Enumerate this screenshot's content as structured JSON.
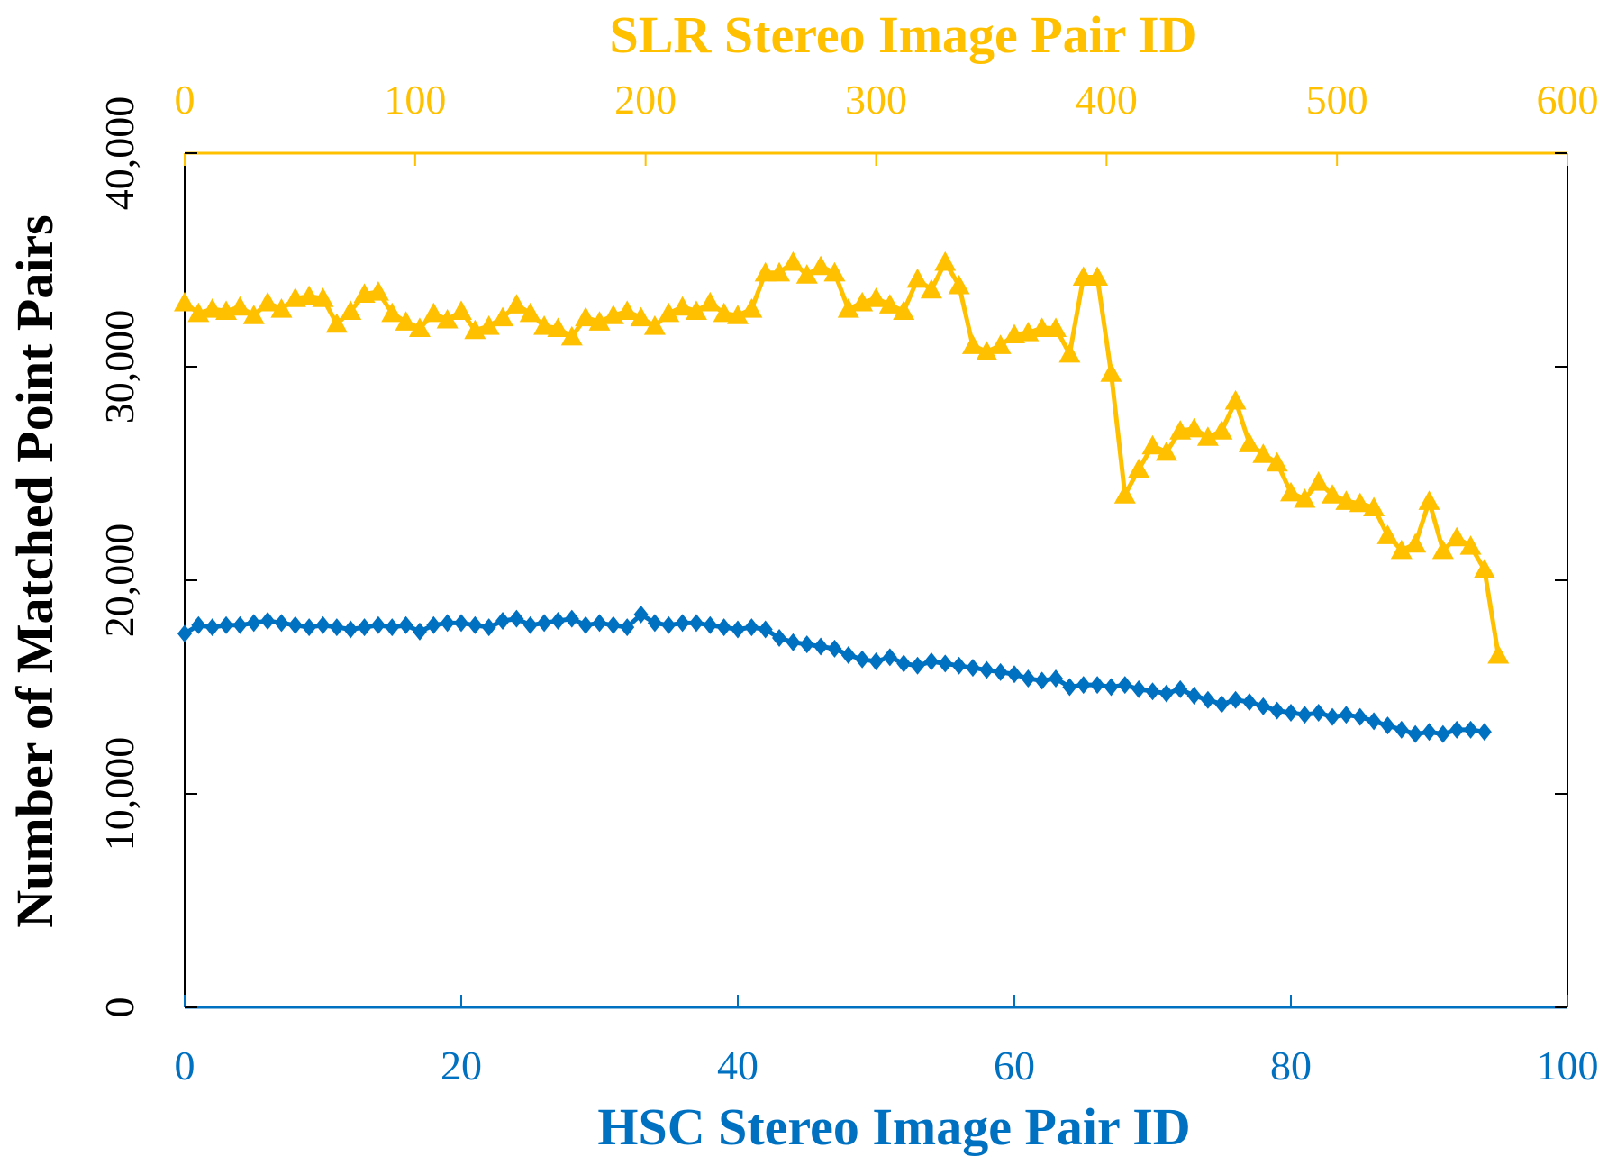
{
  "chart_data": {
    "type": "line",
    "top_axis": {
      "label": "SLR Stereo Image Pair ID",
      "range": [
        0,
        600
      ],
      "ticks": [
        "0",
        "100",
        "200",
        "300",
        "400",
        "500",
        "600"
      ],
      "color": "#FFC000"
    },
    "bottom_axis": {
      "label": "HSC Stereo Image Pair ID",
      "range": [
        0,
        100
      ],
      "ticks": [
        "0",
        "20",
        "40",
        "60",
        "80",
        "100"
      ],
      "color": "#0070C0"
    },
    "y_axis": {
      "label": "Number of Matched Point Pairs",
      "range": [
        0,
        40000
      ],
      "ticks": [
        "0",
        "10,000",
        "20,000",
        "30,000",
        "40,000"
      ],
      "color": "#000000"
    },
    "grid": false,
    "legend": "none",
    "series": [
      {
        "axis": "bottom",
        "marker": "diamond",
        "color": "#0070C0",
        "x": [
          0,
          1,
          2,
          3,
          4,
          5,
          6,
          7,
          8,
          9,
          10,
          11,
          12,
          13,
          14,
          15,
          16,
          17,
          18,
          19,
          20,
          21,
          22,
          23,
          24,
          25,
          26,
          27,
          28,
          29,
          30,
          31,
          32,
          33,
          34,
          35,
          36,
          37,
          38,
          39,
          40,
          41,
          42,
          43,
          44,
          45,
          46,
          47,
          48,
          49,
          50,
          51,
          52,
          53,
          54,
          55,
          56,
          57,
          58,
          59,
          60,
          61,
          62,
          63,
          64,
          65,
          66,
          67,
          68,
          69,
          70,
          71,
          72,
          73,
          74,
          75,
          76,
          77,
          78,
          79,
          80,
          81,
          82,
          83,
          84,
          85,
          86,
          87,
          88,
          89,
          90,
          91,
          92,
          93,
          94
        ],
        "y": [
          17500,
          17900,
          17800,
          17900,
          17900,
          18000,
          18100,
          18000,
          17900,
          17800,
          17900,
          17800,
          17700,
          17800,
          17900,
          17800,
          17900,
          17600,
          17900,
          18000,
          18000,
          17900,
          17800,
          18100,
          18200,
          17900,
          18000,
          18100,
          18200,
          17900,
          18000,
          17900,
          17800,
          18400,
          18000,
          17900,
          18000,
          18000,
          17900,
          17800,
          17700,
          17800,
          17700,
          17300,
          17100,
          17000,
          16900,
          16800,
          16500,
          16300,
          16200,
          16400,
          16100,
          16000,
          16200,
          16100,
          16000,
          15900,
          15800,
          15700,
          15600,
          15400,
          15300,
          15400,
          15000,
          15100,
          15100,
          15000,
          15100,
          14900,
          14800,
          14700,
          14900,
          14600,
          14400,
          14200,
          14400,
          14300,
          14100,
          13900,
          13800,
          13700,
          13800,
          13600,
          13700,
          13600,
          13400,
          13200,
          13000,
          12800,
          12900,
          12800,
          13000,
          13000,
          12900
        ]
      },
      {
        "axis": "top",
        "marker": "triangle",
        "color": "#FFC000",
        "x": [
          0,
          6,
          12,
          18,
          24,
          30,
          36,
          42,
          48,
          54,
          60,
          66,
          72,
          78,
          84,
          90,
          96,
          102,
          108,
          114,
          120,
          126,
          132,
          138,
          144,
          150,
          156,
          162,
          168,
          174,
          180,
          186,
          192,
          198,
          204,
          210,
          216,
          222,
          228,
          234,
          240,
          246,
          252,
          258,
          264,
          270,
          276,
          282,
          288,
          294,
          300,
          306,
          312,
          318,
          324,
          330,
          336,
          342,
          348,
          354,
          360,
          366,
          372,
          378,
          384,
          390,
          396,
          402,
          408,
          414,
          420,
          426,
          432,
          438,
          444,
          450,
          456,
          462,
          468,
          474,
          480,
          486,
          492,
          498,
          504,
          510,
          516,
          522,
          528,
          534,
          540,
          546,
          552,
          558,
          564,
          570
        ],
        "y": [
          33000,
          32500,
          32700,
          32600,
          32800,
          32400,
          33000,
          32700,
          33200,
          33300,
          33200,
          32000,
          32600,
          33400,
          33500,
          32500,
          32100,
          31800,
          32500,
          32200,
          32600,
          31700,
          31900,
          32300,
          32900,
          32500,
          31900,
          31800,
          31400,
          32300,
          32100,
          32400,
          32600,
          32300,
          31900,
          32500,
          32800,
          32600,
          33000,
          32500,
          32400,
          32700,
          34400,
          34400,
          34900,
          34300,
          34700,
          34400,
          32700,
          33000,
          33200,
          32900,
          32600,
          34100,
          33600,
          34900,
          33800,
          31000,
          30700,
          31000,
          31500,
          31600,
          31800,
          31800,
          30600,
          34200,
          34200,
          29700,
          24000,
          25200,
          26300,
          26000,
          27000,
          27100,
          26700,
          27000,
          28400,
          26400,
          25900,
          25500,
          24100,
          23800,
          24600,
          24000,
          23700,
          23600,
          23400,
          22100,
          21400,
          21700,
          23700,
          21400,
          22000,
          21600,
          20500,
          16500
        ]
      }
    ]
  }
}
